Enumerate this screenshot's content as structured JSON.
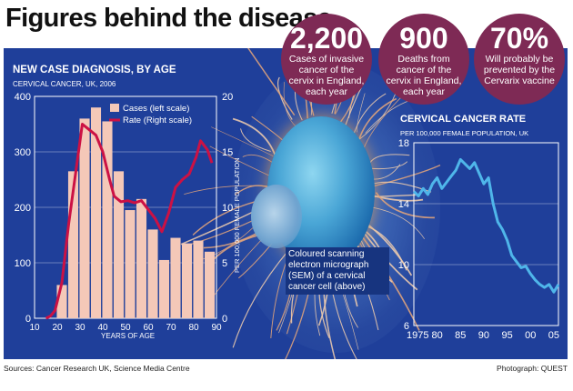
{
  "title": "Figures behind the disease",
  "stats": [
    {
      "value": "2,200",
      "text": "Cases of invasive cancer of the cervix in England, each year"
    },
    {
      "value": "900",
      "text": "Deaths from cancer of the cervix in England, each year"
    },
    {
      "value": "70%",
      "text": "Will probably be prevented by the Cervarix vaccine"
    }
  ],
  "photo_caption": "Coloured scanning electron micrograph (SEM) of a cervical cancer cell (above)",
  "footer": {
    "sources": "Sources: Cancer Research UK, Science Media Centre",
    "photograph": "Photograph: QUEST"
  },
  "colors": {
    "panel": "#1f3f9a",
    "bar": "#f4c8b8",
    "rate_line": "#cc1144",
    "trend_line": "#4fb6ea",
    "circle": "#7e2a55"
  },
  "chart_data": [
    {
      "type": "bar",
      "title": "NEW CASE DIAGNOSIS, BY AGE",
      "subtitle": "CERVICAL CANCER, UK, 2006",
      "xlabel": "YEARS OF AGE",
      "ylabel_right": "PER 100,000 FEMALE POPULATION",
      "x_ticks": [
        10,
        20,
        30,
        40,
        50,
        60,
        70,
        80,
        90
      ],
      "y_ticks_left": [
        0,
        100,
        200,
        300,
        400
      ],
      "y_ticks_right": [
        0,
        5,
        10,
        15,
        20
      ],
      "ylim_left": [
        0,
        400
      ],
      "ylim_right": [
        0,
        20
      ],
      "xlim": [
        10,
        90
      ],
      "legend": [
        "Cases (left scale)",
        "Rate (Right scale)"
      ],
      "series": [
        {
          "name": "Cases (left scale)",
          "kind": "bar",
          "x": [
            17,
            22,
            27,
            32,
            37,
            42,
            47,
            52,
            57,
            62,
            67,
            72,
            77,
            82,
            87
          ],
          "values": [
            0,
            60,
            265,
            360,
            380,
            355,
            265,
            195,
            215,
            160,
            105,
            145,
            135,
            140,
            120
          ]
        },
        {
          "name": "Rate (Right scale)",
          "kind": "line",
          "x": [
            15,
            17,
            19,
            22,
            25,
            28,
            31,
            34,
            37,
            40,
            43,
            45,
            48,
            51,
            54,
            57,
            60,
            63,
            66,
            69,
            72,
            75,
            78,
            81,
            83,
            86,
            88
          ],
          "values": [
            0,
            0.2,
            0.7,
            3.2,
            8.5,
            13.0,
            17.5,
            17.0,
            16.5,
            15.0,
            12.5,
            11.0,
            10.5,
            10.6,
            10.4,
            10.6,
            9.8,
            9.0,
            7.8,
            9.5,
            11.8,
            12.5,
            13.0,
            14.5,
            16.0,
            15.2,
            14.0
          ]
        }
      ]
    },
    {
      "type": "line",
      "title": "CERVICAL CANCER RATE",
      "subtitle": "PER 100,000 FEMALE POPULATION, UK",
      "x_tick_labels": [
        "1975",
        "80",
        "85",
        "90",
        "95",
        "00",
        "05"
      ],
      "x_ticks": [
        1975,
        1980,
        1985,
        1990,
        1995,
        2000,
        2005
      ],
      "y_ticks": [
        6,
        10,
        14,
        18
      ],
      "ylim": [
        6,
        18
      ],
      "xlim": [
        1975,
        2006
      ],
      "series": [
        {
          "name": "Rate",
          "x": [
            1975,
            1976,
            1977,
            1978,
            1979,
            1980,
            1981,
            1982,
            1983,
            1984,
            1985,
            1986,
            1987,
            1988,
            1989,
            1990,
            1991,
            1992,
            1993,
            1994,
            1995,
            1996,
            1997,
            1998,
            1999,
            2000,
            2001,
            2002,
            2003,
            2004,
            2005,
            2006
          ],
          "values": [
            14.8,
            14.5,
            15.0,
            14.6,
            15.3,
            15.7,
            15.0,
            15.4,
            15.8,
            16.2,
            16.9,
            16.6,
            16.3,
            16.7,
            16.0,
            15.3,
            15.7,
            14.0,
            12.8,
            12.3,
            11.6,
            10.6,
            10.2,
            9.8,
            9.9,
            9.4,
            9.0,
            8.7,
            8.5,
            8.7,
            8.2,
            8.7
          ]
        }
      ]
    }
  ]
}
